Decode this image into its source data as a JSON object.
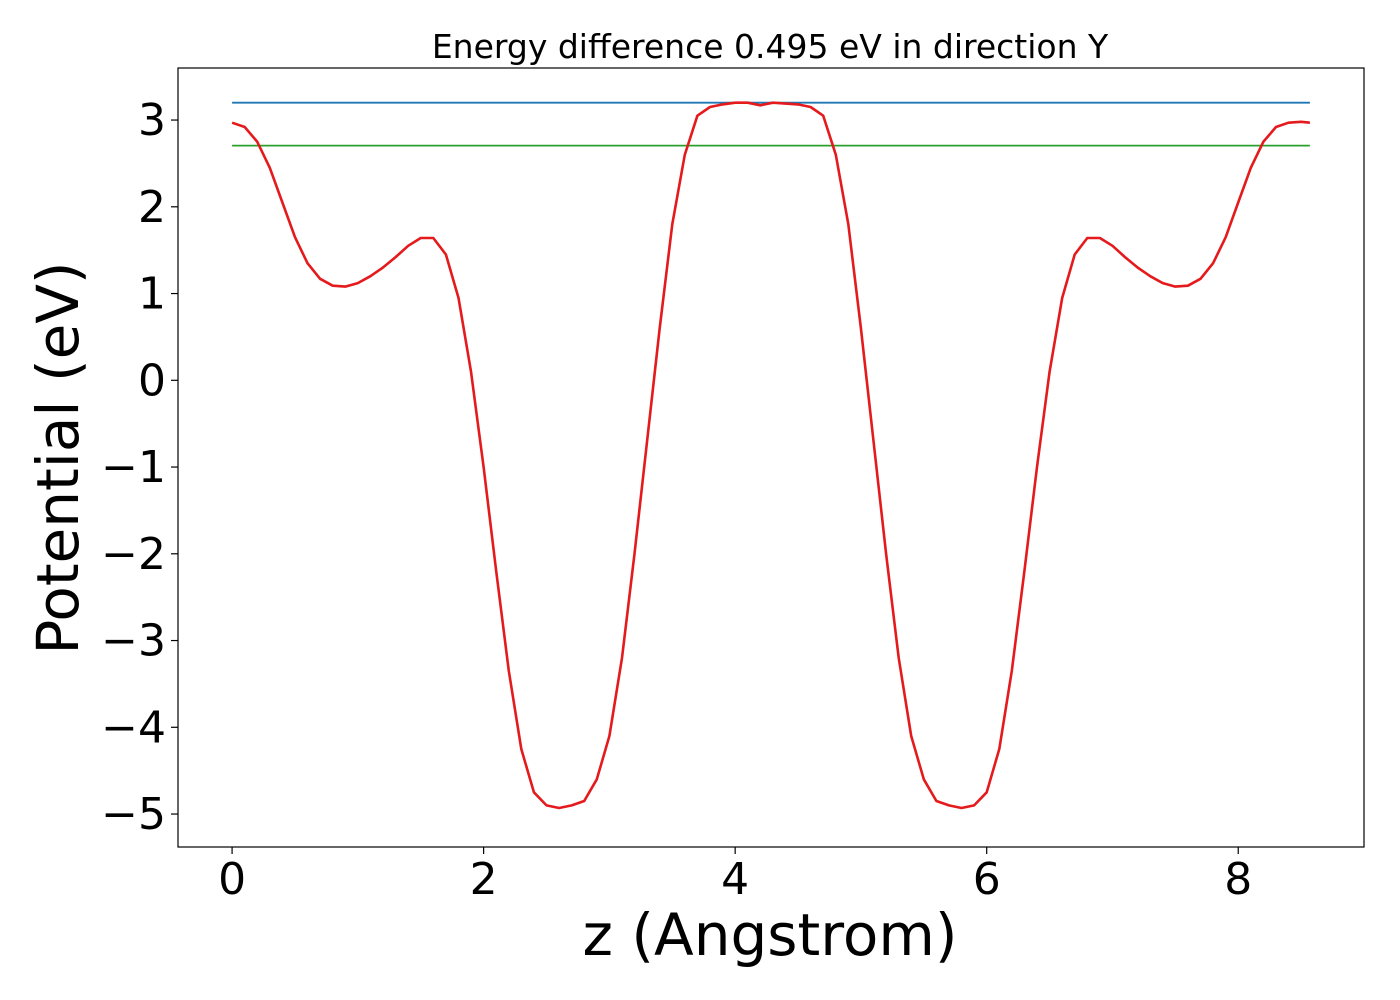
{
  "chart_data": {
    "type": "line",
    "title": "Energy difference 0.495 eV in direction Y",
    "xlabel": "z (Angstrom)",
    "ylabel": "Potential (eV)",
    "xlim": [
      -0.43,
      9.0
    ],
    "ylim": [
      -5.38,
      3.6
    ],
    "xticks": [
      0,
      2,
      4,
      6,
      8
    ],
    "yticks": [
      3,
      2,
      1,
      0,
      -1,
      -2,
      -3,
      -4,
      -5
    ],
    "xtick_labels": [
      "0",
      "2",
      "4",
      "6",
      "8"
    ],
    "ytick_labels": [
      "3",
      "2",
      "1",
      "0",
      "−1",
      "−2",
      "−3",
      "−4",
      "−5"
    ],
    "grid": false,
    "series": [
      {
        "color": "#e41a1c",
        "x": [
          0,
          0.1,
          0.2,
          0.3,
          0.4,
          0.5,
          0.6,
          0.7,
          0.8,
          0.9,
          1.0,
          1.1,
          1.2,
          1.3,
          1.4,
          1.5,
          1.6,
          1.7,
          1.8,
          1.9,
          2.0,
          2.1,
          2.2,
          2.3,
          2.4,
          2.5,
          2.6,
          2.7,
          2.8,
          2.9,
          3.0,
          3.1,
          3.2,
          3.3,
          3.4,
          3.5,
          3.6,
          3.7,
          3.8,
          3.9,
          4.0,
          4.1,
          4.2,
          4.3,
          4.4,
          4.5,
          4.6,
          4.7,
          4.8,
          4.9,
          5.0,
          5.1,
          5.2,
          5.3,
          5.4,
          5.5,
          5.6,
          5.7,
          5.8,
          5.9,
          6.0,
          6.1,
          6.2,
          6.3,
          6.4,
          6.5,
          6.6,
          6.7,
          6.8,
          6.9,
          7.0,
          7.1,
          7.2,
          7.3,
          7.4,
          7.5,
          7.6,
          7.7,
          7.8,
          7.9,
          8.0,
          8.1,
          8.2,
          8.3,
          8.4,
          8.5,
          8.57
        ],
        "y": [
          2.97,
          2.92,
          2.75,
          2.45,
          2.05,
          1.65,
          1.35,
          1.17,
          1.09,
          1.08,
          1.12,
          1.2,
          1.3,
          1.42,
          1.55,
          1.64,
          1.64,
          1.45,
          0.95,
          0.1,
          -1.0,
          -2.2,
          -3.35,
          -4.25,
          -4.75,
          -4.9,
          -4.93,
          -4.9,
          -4.85,
          -4.6,
          -4.1,
          -3.2,
          -2.0,
          -0.7,
          0.6,
          1.8,
          2.6,
          3.05,
          3.15,
          3.18,
          3.2,
          3.2,
          3.17,
          3.2,
          3.19,
          3.18,
          3.15,
          3.05,
          2.6,
          1.8,
          0.6,
          -0.7,
          -2.0,
          -3.2,
          -4.1,
          -4.6,
          -4.85,
          -4.9,
          -4.93,
          -4.9,
          -4.75,
          -4.25,
          -3.35,
          -2.2,
          -1.0,
          0.1,
          0.95,
          1.45,
          1.64,
          1.64,
          1.55,
          1.42,
          1.3,
          1.2,
          1.12,
          1.08,
          1.09,
          1.17,
          1.35,
          1.65,
          2.05,
          2.45,
          2.75,
          2.92,
          2.97,
          2.98,
          2.97
        ]
      },
      {
        "color": "#1f77b4",
        "x": [
          0,
          8.57
        ],
        "y": [
          3.2,
          3.2
        ]
      },
      {
        "color": "#2ca02c",
        "x": [
          0,
          8.57
        ],
        "y": [
          2.705,
          2.705
        ]
      }
    ]
  }
}
